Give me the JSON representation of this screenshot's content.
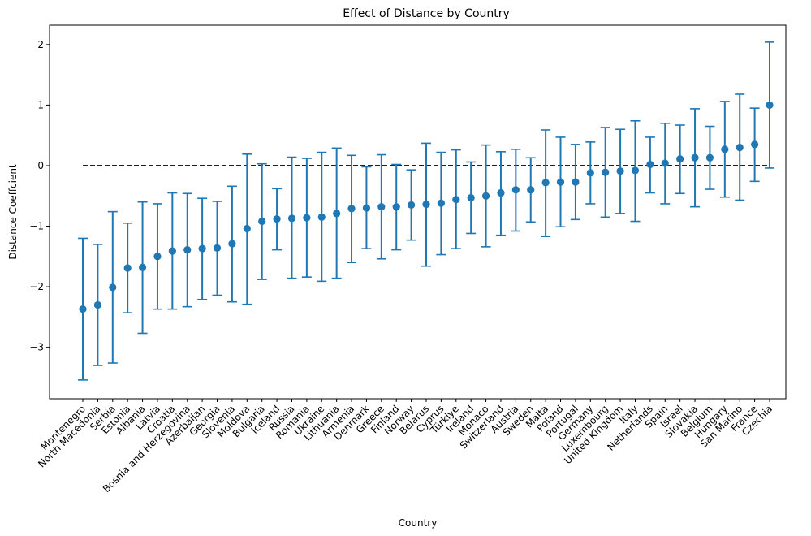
{
  "chart_data": {
    "type": "scatter",
    "title": "Effect of Distance by Country",
    "xlabel": "Country",
    "ylabel": "Distance Coeffcient",
    "ylim": [
      -3.85,
      2.32
    ],
    "yticks": [
      -3,
      -2,
      -1,
      0,
      1,
      2
    ],
    "grid": false,
    "reference_line": {
      "y": 0,
      "style": "dashed",
      "color": "#000000"
    },
    "colors": {
      "marker": "#1f77b4",
      "reference": "#000000"
    },
    "points": [
      {
        "country": "Montenegro",
        "coef": -2.37,
        "lower": -3.54,
        "upper": -1.2
      },
      {
        "country": "North Macedonia",
        "coef": -2.3,
        "lower": -3.3,
        "upper": -1.3
      },
      {
        "country": "Serbia",
        "coef": -2.01,
        "lower": -3.26,
        "upper": -0.76
      },
      {
        "country": "Estonia",
        "coef": -1.69,
        "lower": -2.43,
        "upper": -0.95
      },
      {
        "country": "Albania",
        "coef": -1.68,
        "lower": -2.77,
        "upper": -0.6
      },
      {
        "country": "Latvia",
        "coef": -1.5,
        "lower": -2.37,
        "upper": -0.63
      },
      {
        "country": "Croatia",
        "coef": -1.41,
        "lower": -2.37,
        "upper": -0.45
      },
      {
        "country": "Bosnia and Herzegovina",
        "coef": -1.39,
        "lower": -2.33,
        "upper": -0.46
      },
      {
        "country": "Azerbaijan",
        "coef": -1.37,
        "lower": -2.21,
        "upper": -0.54
      },
      {
        "country": "Georgia",
        "coef": -1.36,
        "lower": -2.14,
        "upper": -0.59
      },
      {
        "country": "Slovenia",
        "coef": -1.29,
        "lower": -2.25,
        "upper": -0.34
      },
      {
        "country": "Moldova",
        "coef": -1.04,
        "lower": -2.29,
        "upper": 0.19
      },
      {
        "country": "Bulgaria",
        "coef": -0.92,
        "lower": -1.88,
        "upper": 0.03
      },
      {
        "country": "Iceland",
        "coef": -0.88,
        "lower": -1.39,
        "upper": -0.38
      },
      {
        "country": "Russia",
        "coef": -0.87,
        "lower": -1.86,
        "upper": 0.14
      },
      {
        "country": "Romania",
        "coef": -0.86,
        "lower": -1.84,
        "upper": 0.12
      },
      {
        "country": "Ukraine",
        "coef": -0.85,
        "lower": -1.91,
        "upper": 0.22
      },
      {
        "country": "Lithuania",
        "coef": -0.79,
        "lower": -1.86,
        "upper": 0.29
      },
      {
        "country": "Armenia",
        "coef": -0.71,
        "lower": -1.6,
        "upper": 0.17
      },
      {
        "country": "Denmark",
        "coef": -0.7,
        "lower": -1.37,
        "upper": -0.02
      },
      {
        "country": "Greece",
        "coef": -0.68,
        "lower": -1.54,
        "upper": 0.18
      },
      {
        "country": "Finland",
        "coef": -0.68,
        "lower": -1.39,
        "upper": 0.02
      },
      {
        "country": "Norway",
        "coef": -0.65,
        "lower": -1.23,
        "upper": -0.07
      },
      {
        "country": "Belarus",
        "coef": -0.64,
        "lower": -1.66,
        "upper": 0.37
      },
      {
        "country": "Cyprus",
        "coef": -0.62,
        "lower": -1.47,
        "upper": 0.22
      },
      {
        "country": "Türkiye",
        "coef": -0.56,
        "lower": -1.37,
        "upper": 0.26
      },
      {
        "country": "Ireland",
        "coef": -0.53,
        "lower": -1.12,
        "upper": 0.06
      },
      {
        "country": "Monaco",
        "coef": -0.5,
        "lower": -1.34,
        "upper": 0.34
      },
      {
        "country": "Switzerland",
        "coef": -0.45,
        "lower": -1.15,
        "upper": 0.23
      },
      {
        "country": "Austria",
        "coef": -0.4,
        "lower": -1.08,
        "upper": 0.27
      },
      {
        "country": "Sweden",
        "coef": -0.4,
        "lower": -0.93,
        "upper": 0.13
      },
      {
        "country": "Malta",
        "coef": -0.28,
        "lower": -1.17,
        "upper": 0.59
      },
      {
        "country": "Poland",
        "coef": -0.27,
        "lower": -1.01,
        "upper": 0.47
      },
      {
        "country": "Portugal",
        "coef": -0.27,
        "lower": -0.89,
        "upper": 0.35
      },
      {
        "country": "Germany",
        "coef": -0.12,
        "lower": -0.63,
        "upper": 0.39
      },
      {
        "country": "Luxembourg",
        "coef": -0.11,
        "lower": -0.85,
        "upper": 0.63
      },
      {
        "country": "United Kingdom",
        "coef": -0.09,
        "lower": -0.79,
        "upper": 0.6
      },
      {
        "country": "Italy",
        "coef": -0.08,
        "lower": -0.92,
        "upper": 0.74
      },
      {
        "country": "Netherlands",
        "coef": 0.02,
        "lower": -0.45,
        "upper": 0.47
      },
      {
        "country": "Spain",
        "coef": 0.04,
        "lower": -0.63,
        "upper": 0.7
      },
      {
        "country": "Israel",
        "coef": 0.11,
        "lower": -0.46,
        "upper": 0.67
      },
      {
        "country": "Slovakia",
        "coef": 0.13,
        "lower": -0.68,
        "upper": 0.94
      },
      {
        "country": "Belgium",
        "coef": 0.13,
        "lower": -0.39,
        "upper": 0.65
      },
      {
        "country": "Hungary",
        "coef": 0.27,
        "lower": -0.52,
        "upper": 1.06
      },
      {
        "country": "San Marino",
        "coef": 0.3,
        "lower": -0.57,
        "upper": 1.18
      },
      {
        "country": "France",
        "coef": 0.35,
        "lower": -0.26,
        "upper": 0.95
      },
      {
        "country": "Czechia",
        "coef": 1.0,
        "lower": -0.04,
        "upper": 2.04
      }
    ]
  }
}
